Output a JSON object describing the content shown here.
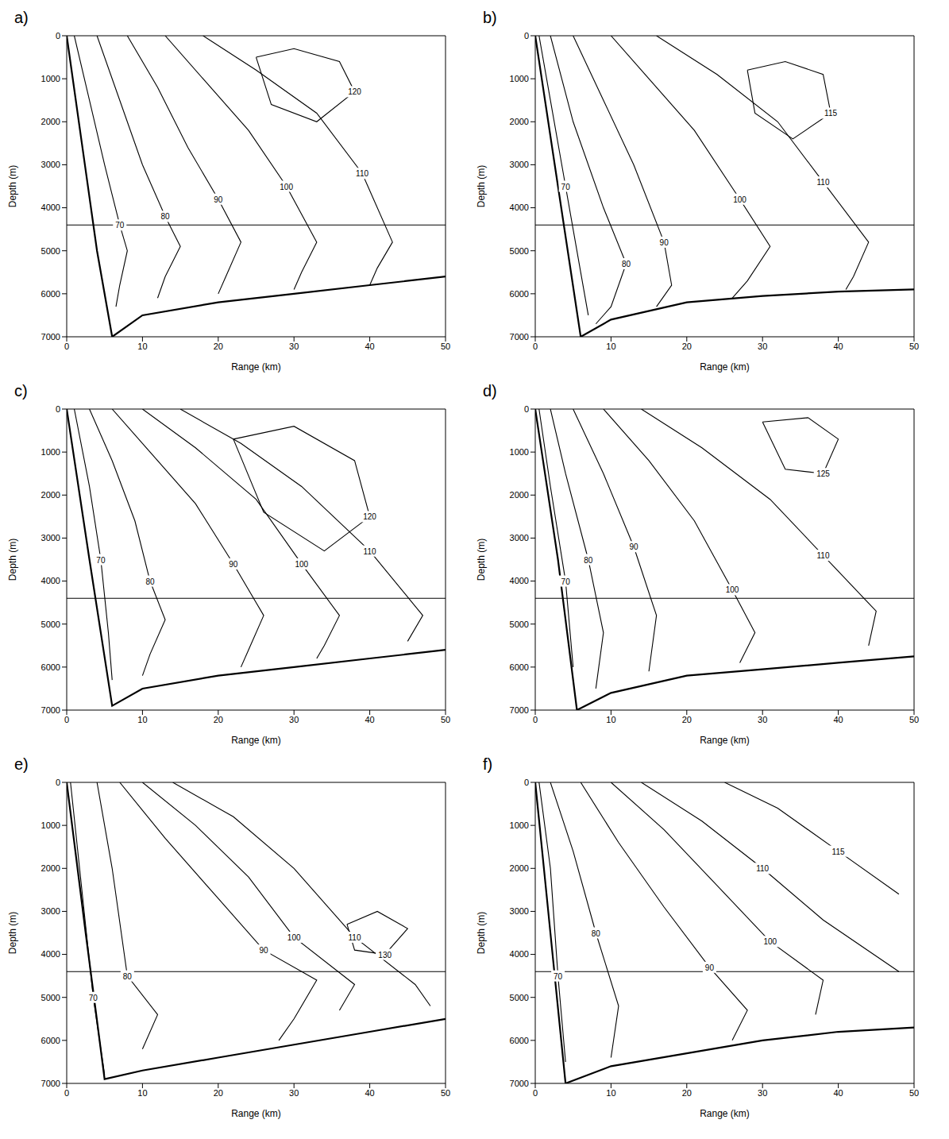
{
  "chart_data": [
    {
      "type": "line",
      "title": "a)",
      "x_label": "Range (km)",
      "y_label": "Depth (m)",
      "xlim": [
        0,
        50
      ],
      "ylim": [
        7000,
        0
      ],
      "xticks": [
        0,
        10,
        20,
        30,
        40,
        50
      ],
      "yticks": [
        0,
        1000,
        2000,
        3000,
        4000,
        5000,
        6000,
        7000
      ],
      "grid": false,
      "series": [
        {
          "color": "#000000",
          "x": [
            0,
            2,
            4,
            6,
            10,
            20,
            30,
            40,
            50
          ],
          "values": [
            0,
            2500,
            5000,
            7000,
            6500,
            6200,
            6000,
            5800,
            5600
          ]
        },
        {
          "color": "#000000",
          "x": [
            0,
            50
          ],
          "values": [
            4400,
            4400
          ]
        },
        {
          "name": "70",
          "color": "#000000",
          "x": [
            1,
            3,
            5,
            7,
            8,
            7,
            6.5
          ],
          "values": [
            0,
            1500,
            3000,
            4400,
            5000,
            5800,
            6300
          ]
        },
        {
          "name": "80",
          "color": "#000000",
          "x": [
            4,
            7,
            10,
            13,
            15,
            13,
            12
          ],
          "values": [
            0,
            1500,
            3000,
            4200,
            4900,
            5600,
            6100
          ]
        },
        {
          "name": "90",
          "color": "#000000",
          "x": [
            8,
            12,
            16,
            20,
            23,
            21,
            20
          ],
          "values": [
            0,
            1200,
            2600,
            3800,
            4800,
            5600,
            6000
          ]
        },
        {
          "name": "100",
          "color": "#000000",
          "x": [
            13,
            18,
            24,
            29,
            33,
            31,
            30
          ],
          "values": [
            0,
            1000,
            2200,
            3500,
            4800,
            5500,
            5900
          ]
        },
        {
          "name": "110",
          "color": "#000000",
          "x": [
            18,
            25,
            33,
            39,
            43,
            41,
            40
          ],
          "values": [
            0,
            800,
            1800,
            3200,
            4800,
            5400,
            5800
          ]
        },
        {
          "name": "120",
          "color": "#000000",
          "x": [
            25,
            30,
            36,
            38,
            33,
            27,
            25
          ],
          "values": [
            500,
            300,
            600,
            1300,
            2000,
            1600,
            500
          ]
        }
      ]
    },
    {
      "type": "line",
      "title": "b)",
      "x_label": "Range (km)",
      "y_label": "Depth (m)",
      "xlim": [
        0,
        50
      ],
      "ylim": [
        7000,
        0
      ],
      "xticks": [
        0,
        10,
        20,
        30,
        40,
        50
      ],
      "yticks": [
        0,
        1000,
        2000,
        3000,
        4000,
        5000,
        6000,
        7000
      ],
      "grid": false,
      "series": [
        {
          "color": "#000000",
          "x": [
            0,
            3,
            6,
            10,
            20,
            30,
            40,
            50
          ],
          "values": [
            0,
            3500,
            7000,
            6600,
            6200,
            6050,
            5950,
            5900
          ]
        },
        {
          "color": "#000000",
          "x": [
            0,
            50
          ],
          "values": [
            4400,
            4400
          ]
        },
        {
          "name": "70",
          "color": "#000000",
          "x": [
            0.5,
            2,
            4,
            6,
            7
          ],
          "values": [
            0,
            1500,
            3500,
            5500,
            6500
          ]
        },
        {
          "name": "80",
          "color": "#000000",
          "x": [
            2,
            5,
            9,
            12,
            10,
            8
          ],
          "values": [
            0,
            2000,
            4000,
            5300,
            6300,
            6700
          ]
        },
        {
          "name": "90",
          "color": "#000000",
          "x": [
            5,
            9,
            13,
            17,
            18,
            16
          ],
          "values": [
            0,
            1500,
            3000,
            4800,
            5800,
            6300
          ]
        },
        {
          "name": "100",
          "color": "#000000",
          "x": [
            10,
            15,
            21,
            27,
            31,
            28,
            26
          ],
          "values": [
            0,
            1000,
            2200,
            3800,
            4900,
            5700,
            6100
          ]
        },
        {
          "name": "110",
          "color": "#000000",
          "x": [
            16,
            24,
            32,
            38,
            44,
            42,
            41
          ],
          "values": [
            0,
            900,
            2000,
            3400,
            4800,
            5600,
            5900
          ]
        },
        {
          "name": "115",
          "color": "#000000",
          "x": [
            28,
            33,
            38,
            39,
            34,
            29,
            28
          ],
          "values": [
            800,
            600,
            900,
            1800,
            2400,
            1800,
            800
          ]
        }
      ]
    },
    {
      "type": "line",
      "title": "c)",
      "x_label": "Range (km)",
      "y_label": "Depth (m)",
      "xlim": [
        0,
        50
      ],
      "ylim": [
        7000,
        0
      ],
      "xticks": [
        0,
        10,
        20,
        30,
        40,
        50
      ],
      "yticks": [
        0,
        1000,
        2000,
        3000,
        4000,
        5000,
        6000,
        7000
      ],
      "grid": false,
      "series": [
        {
          "color": "#000000",
          "x": [
            0,
            3,
            6,
            10,
            20,
            30,
            40,
            50
          ],
          "values": [
            0,
            3500,
            6900,
            6500,
            6200,
            6000,
            5800,
            5600
          ]
        },
        {
          "color": "#000000",
          "x": [
            0,
            50
          ],
          "values": [
            4400,
            4400
          ]
        },
        {
          "name": "70",
          "color": "#000000",
          "x": [
            1,
            3,
            4.5,
            5.5,
            6
          ],
          "values": [
            0,
            1800,
            3500,
            5200,
            6300
          ]
        },
        {
          "name": "80",
          "color": "#000000",
          "x": [
            3,
            6,
            9,
            11,
            13,
            11,
            10
          ],
          "values": [
            0,
            1200,
            2600,
            4000,
            4900,
            5700,
            6200
          ]
        },
        {
          "name": "90",
          "color": "#000000",
          "x": [
            6,
            11,
            17,
            22,
            26,
            24,
            23
          ],
          "values": [
            0,
            1000,
            2200,
            3600,
            4800,
            5600,
            6000
          ]
        },
        {
          "name": "100",
          "color": "#000000",
          "x": [
            10,
            17,
            25,
            31,
            36,
            34,
            33
          ],
          "values": [
            0,
            900,
            2100,
            3600,
            4800,
            5500,
            5800
          ]
        },
        {
          "name": "110",
          "color": "#000000",
          "x": [
            15,
            23,
            31,
            40,
            47,
            45
          ],
          "values": [
            0,
            800,
            1800,
            3300,
            4800,
            5400
          ]
        },
        {
          "name": "120",
          "color": "#000000",
          "x": [
            22,
            30,
            38,
            40,
            34,
            26,
            22
          ],
          "values": [
            700,
            400,
            1200,
            2500,
            3300,
            2400,
            700
          ]
        }
      ]
    },
    {
      "type": "line",
      "title": "d)",
      "x_label": "Range (km)",
      "y_label": "Depth (m)",
      "xlim": [
        0,
        50
      ],
      "ylim": [
        7000,
        0
      ],
      "xticks": [
        0,
        10,
        20,
        30,
        40,
        50
      ],
      "yticks": [
        0,
        1000,
        2000,
        3000,
        4000,
        5000,
        6000,
        7000
      ],
      "grid": false,
      "series": [
        {
          "color": "#000000",
          "x": [
            0,
            3,
            5.5,
            10,
            20,
            30,
            40,
            50
          ],
          "values": [
            0,
            3500,
            7000,
            6600,
            6200,
            6050,
            5900,
            5750
          ]
        },
        {
          "color": "#000000",
          "x": [
            0,
            50
          ],
          "values": [
            4400,
            4400
          ]
        },
        {
          "name": "70",
          "color": "#000000",
          "x": [
            0.5,
            2,
            4,
            5
          ],
          "values": [
            0,
            1800,
            4000,
            6000
          ]
        },
        {
          "name": "80",
          "color": "#000000",
          "x": [
            2,
            4,
            7,
            9,
            8
          ],
          "values": [
            0,
            1500,
            3500,
            5200,
            6500
          ]
        },
        {
          "name": "90",
          "color": "#000000",
          "x": [
            5,
            9,
            13,
            16,
            15
          ],
          "values": [
            0,
            1500,
            3200,
            4800,
            6100
          ]
        },
        {
          "name": "100",
          "color": "#000000",
          "x": [
            9,
            15,
            21,
            26,
            29,
            27
          ],
          "values": [
            0,
            1200,
            2600,
            4200,
            5200,
            5900
          ]
        },
        {
          "name": "110",
          "color": "#000000",
          "x": [
            14,
            22,
            31,
            38,
            45,
            44
          ],
          "values": [
            0,
            900,
            2100,
            3400,
            4700,
            5500
          ]
        },
        {
          "name": "125",
          "color": "#000000",
          "x": [
            30,
            36,
            40,
            38,
            33,
            30
          ],
          "values": [
            300,
            200,
            700,
            1500,
            1400,
            300
          ]
        }
      ]
    },
    {
      "type": "line",
      "title": "e)",
      "x_label": "Range (km)",
      "y_label": "Depth (m)",
      "xlim": [
        0,
        50
      ],
      "ylim": [
        7000,
        0
      ],
      "xticks": [
        0,
        10,
        20,
        30,
        40,
        50
      ],
      "yticks": [
        0,
        1000,
        2000,
        3000,
        4000,
        5000,
        6000,
        7000
      ],
      "grid": false,
      "series": [
        {
          "color": "#000000",
          "x": [
            0,
            2.5,
            5,
            10,
            20,
            30,
            40,
            50
          ],
          "values": [
            0,
            3500,
            6900,
            6700,
            6400,
            6100,
            5800,
            5500
          ]
        },
        {
          "color": "#000000",
          "x": [
            0,
            50
          ],
          "values": [
            4400,
            4400
          ]
        },
        {
          "name": "70",
          "color": "#000000",
          "x": [
            0.5,
            2,
            3.5,
            5
          ],
          "values": [
            0,
            2500,
            5000,
            6800
          ]
        },
        {
          "name": "80",
          "color": "#000000",
          "x": [
            4,
            6,
            8,
            12,
            10
          ],
          "values": [
            0,
            2000,
            4500,
            5400,
            6200
          ]
        },
        {
          "name": "90",
          "color": "#000000",
          "x": [
            7,
            13,
            20,
            26,
            33,
            30,
            28
          ],
          "values": [
            0,
            1300,
            2700,
            3900,
            4600,
            5500,
            6000
          ]
        },
        {
          "name": "100",
          "color": "#000000",
          "x": [
            10,
            17,
            24,
            30,
            38,
            36
          ],
          "values": [
            0,
            1000,
            2200,
            3600,
            4700,
            5300
          ]
        },
        {
          "name": "110",
          "color": "#000000",
          "x": [
            14,
            22,
            30,
            38,
            46,
            48
          ],
          "values": [
            0,
            800,
            2000,
            3600,
            4700,
            5200
          ]
        },
        {
          "name": "130",
          "color": "#000000",
          "x": [
            37,
            41,
            45,
            42,
            38,
            37
          ],
          "values": [
            3300,
            3000,
            3400,
            4000,
            3900,
            3300
          ]
        }
      ]
    },
    {
      "type": "line",
      "title": "f)",
      "x_label": "Range (km)",
      "y_label": "Depth (m)",
      "xlim": [
        0,
        50
      ],
      "ylim": [
        7000,
        0
      ],
      "xticks": [
        0,
        10,
        20,
        30,
        40,
        50
      ],
      "yticks": [
        0,
        1000,
        2000,
        3000,
        4000,
        5000,
        6000,
        7000
      ],
      "grid": false,
      "series": [
        {
          "color": "#000000",
          "x": [
            0,
            2,
            4,
            10,
            20,
            30,
            40,
            50
          ],
          "values": [
            0,
            3500,
            7000,
            6600,
            6300,
            6000,
            5800,
            5700
          ]
        },
        {
          "color": "#000000",
          "x": [
            0,
            50
          ],
          "values": [
            4400,
            4400
          ]
        },
        {
          "name": "70",
          "color": "#000000",
          "x": [
            0.5,
            2,
            3,
            4
          ],
          "values": [
            0,
            2000,
            4500,
            6500
          ]
        },
        {
          "name": "80",
          "color": "#000000",
          "x": [
            2,
            5,
            8,
            11,
            10
          ],
          "values": [
            0,
            1600,
            3500,
            5200,
            6400
          ]
        },
        {
          "name": "90",
          "color": "#000000",
          "x": [
            6,
            11,
            17,
            23,
            28,
            26
          ],
          "values": [
            0,
            1400,
            2900,
            4300,
            5300,
            6000
          ]
        },
        {
          "name": "100",
          "color": "#000000",
          "x": [
            10,
            17,
            24,
            31,
            38,
            37
          ],
          "values": [
            0,
            1100,
            2400,
            3700,
            4600,
            5400
          ]
        },
        {
          "name": "110",
          "color": "#000000",
          "x": [
            14,
            22,
            30,
            38,
            48
          ],
          "values": [
            0,
            900,
            2000,
            3200,
            4400
          ]
        },
        {
          "name": "115",
          "color": "#000000",
          "x": [
            25,
            32,
            40,
            48
          ],
          "values": [
            0,
            600,
            1600,
            2600
          ]
        }
      ]
    }
  ]
}
